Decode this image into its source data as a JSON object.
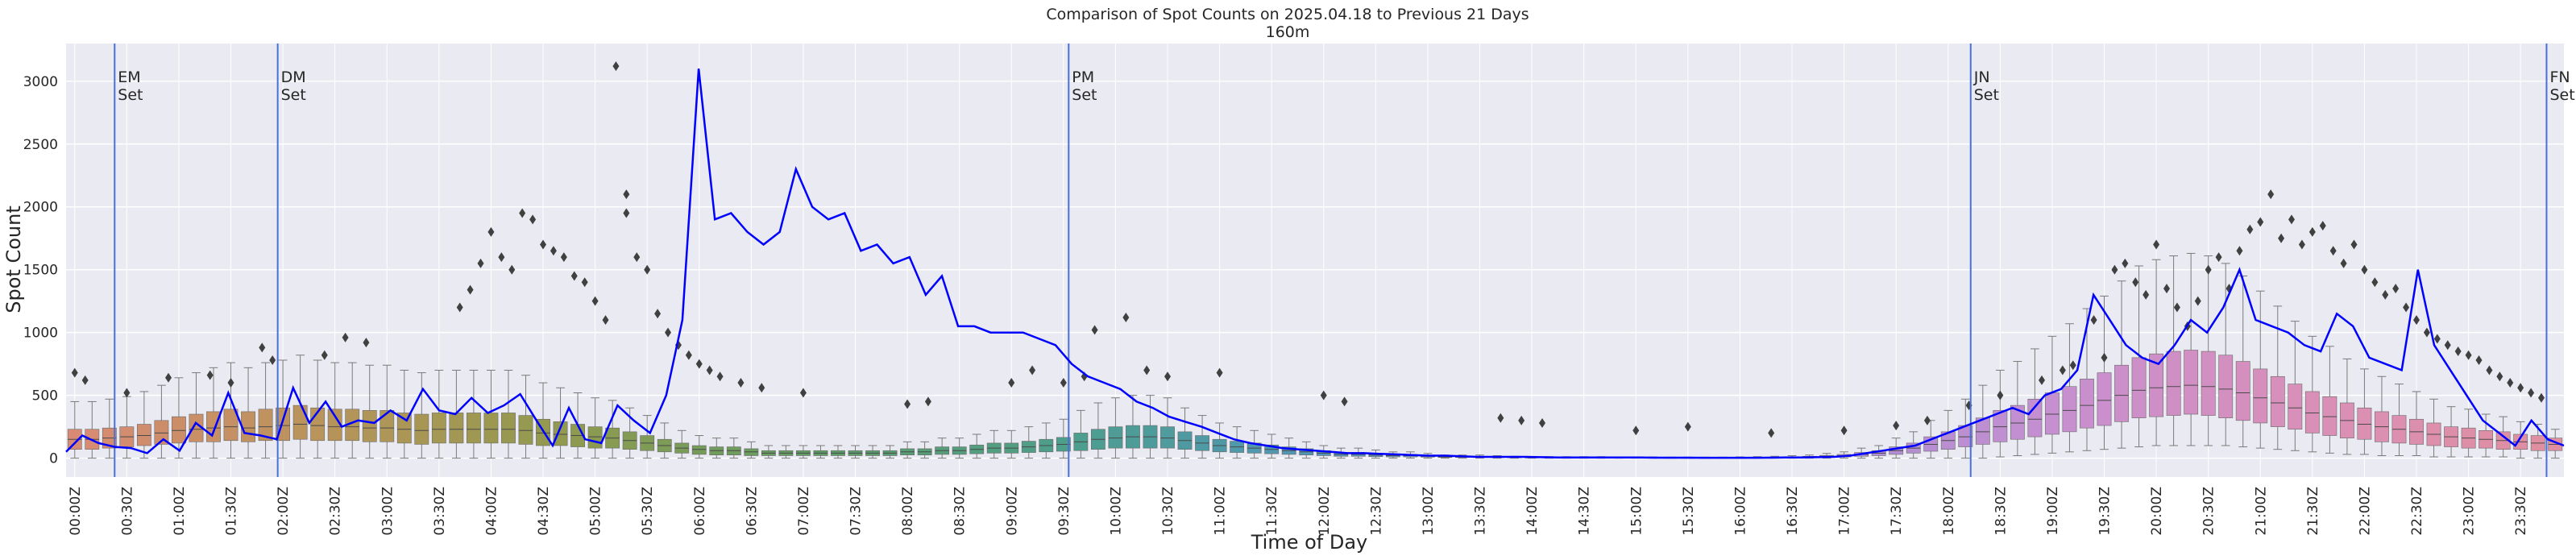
{
  "chart_data": {
    "type": "box+line",
    "title": "Comparison of Spot Counts on 2025.04.18 to Previous 21 Days",
    "subtitle": "160m",
    "xlabel": "Time of Day",
    "ylabel": "Spot Count",
    "ylim": [
      -150,
      3300
    ],
    "yticks": [
      0,
      500,
      1000,
      1500,
      2000,
      2500,
      3000
    ],
    "grid": true,
    "interval_minutes": 10,
    "n_bins": 144,
    "xtick_labels": [
      "00:00Z",
      "00:30Z",
      "01:00Z",
      "01:30Z",
      "02:00Z",
      "02:30Z",
      "03:00Z",
      "03:30Z",
      "04:00Z",
      "04:30Z",
      "05:00Z",
      "05:30Z",
      "06:00Z",
      "06:30Z",
      "07:00Z",
      "07:30Z",
      "08:00Z",
      "08:30Z",
      "09:00Z",
      "09:30Z",
      "10:00Z",
      "10:30Z",
      "11:00Z",
      "11:30Z",
      "12:00Z",
      "12:30Z",
      "13:00Z",
      "13:30Z",
      "14:00Z",
      "14:30Z",
      "15:00Z",
      "15:30Z",
      "16:00Z",
      "16:30Z",
      "17:00Z",
      "17:30Z",
      "18:00Z",
      "18:30Z",
      "19:00Z",
      "19:30Z",
      "20:00Z",
      "20:30Z",
      "21:00Z",
      "21:30Z",
      "22:00Z",
      "22:30Z",
      "23:00Z",
      "23:30Z"
    ],
    "events": [
      {
        "label_line1": "EM",
        "label_line2": "Set",
        "x_bin": 2.8
      },
      {
        "label_line1": "DM",
        "label_line2": "Set",
        "x_bin": 12.2
      },
      {
        "label_line1": "PM",
        "label_line2": "Set",
        "x_bin": 57.8
      },
      {
        "label_line1": "JN",
        "label_line2": "Set",
        "x_bin": 109.8
      },
      {
        "label_line1": "FN",
        "label_line2": "Set",
        "x_bin": 143.0
      }
    ],
    "box_medians": [
      150,
      150,
      160,
      170,
      180,
      200,
      220,
      230,
      240,
      250,
      240,
      250,
      260,
      270,
      260,
      250,
      250,
      240,
      240,
      230,
      220,
      230,
      230,
      230,
      230,
      230,
      220,
      200,
      190,
      180,
      170,
      160,
      140,
      120,
      100,
      80,
      70,
      60,
      60,
      50,
      40,
      40,
      40,
      40,
      40,
      40,
      40,
      40,
      50,
      50,
      60,
      60,
      70,
      80,
      80,
      90,
      100,
      110,
      130,
      150,
      160,
      170,
      170,
      160,
      140,
      120,
      100,
      90,
      80,
      70,
      60,
      50,
      40,
      30,
      30,
      25,
      20,
      20,
      15,
      10,
      10,
      10,
      8,
      6,
      5,
      5,
      5,
      5,
      5,
      4,
      4,
      4,
      3,
      3,
      3,
      3,
      4,
      5,
      6,
      8,
      10,
      15,
      20,
      30,
      40,
      60,
      80,
      110,
      140,
      170,
      210,
      250,
      280,
      310,
      350,
      380,
      420,
      460,
      500,
      540,
      560,
      570,
      580,
      570,
      550,
      520,
      480,
      440,
      400,
      360,
      330,
      300,
      270,
      250,
      230,
      210,
      190,
      170,
      160,
      150,
      140,
      130,
      120,
      110
    ],
    "box_q1": [
      70,
      70,
      80,
      90,
      100,
      110,
      120,
      130,
      130,
      140,
      130,
      140,
      140,
      150,
      140,
      140,
      140,
      130,
      130,
      120,
      110,
      120,
      120,
      120,
      120,
      120,
      110,
      100,
      100,
      90,
      80,
      80,
      70,
      60,
      50,
      40,
      30,
      25,
      25,
      20,
      20,
      20,
      20,
      20,
      20,
      20,
      20,
      20,
      25,
      25,
      30,
      30,
      35,
      40,
      40,
      45,
      50,
      55,
      60,
      70,
      80,
      80,
      80,
      80,
      70,
      60,
      50,
      45,
      40,
      35,
      30,
      25,
      20,
      15,
      15,
      12,
      10,
      10,
      8,
      5,
      5,
      5,
      4,
      3,
      2,
      2,
      2,
      2,
      2,
      2,
      2,
      2,
      1,
      1,
      1,
      1,
      2,
      2,
      3,
      4,
      5,
      8,
      10,
      15,
      20,
      30,
      40,
      55,
      70,
      90,
      110,
      130,
      150,
      170,
      190,
      210,
      240,
      260,
      290,
      320,
      330,
      340,
      350,
      340,
      320,
      300,
      280,
      250,
      230,
      200,
      180,
      160,
      150,
      130,
      120,
      110,
      100,
      90,
      80,
      80,
      70,
      70,
      60,
      60
    ],
    "box_q3": [
      230,
      230,
      240,
      250,
      270,
      300,
      330,
      350,
      370,
      390,
      370,
      390,
      400,
      420,
      400,
      390,
      390,
      380,
      380,
      360,
      350,
      360,
      360,
      360,
      360,
      360,
      340,
      310,
      290,
      270,
      250,
      240,
      210,
      180,
      150,
      120,
      100,
      90,
      90,
      75,
      60,
      60,
      60,
      60,
      60,
      60,
      60,
      60,
      75,
      75,
      90,
      90,
      105,
      120,
      120,
      135,
      150,
      165,
      200,
      230,
      250,
      260,
      260,
      250,
      210,
      180,
      150,
      135,
      120,
      105,
      90,
      75,
      60,
      45,
      45,
      38,
      30,
      30,
      22,
      15,
      15,
      15,
      12,
      9,
      8,
      8,
      8,
      8,
      8,
      6,
      6,
      6,
      5,
      5,
      5,
      5,
      6,
      8,
      9,
      12,
      15,
      22,
      30,
      45,
      60,
      90,
      120,
      170,
      210,
      260,
      320,
      380,
      420,
      470,
      520,
      570,
      630,
      680,
      740,
      800,
      830,
      850,
      860,
      850,
      820,
      770,
      710,
      650,
      590,
      530,
      490,
      440,
      400,
      370,
      340,
      310,
      280,
      250,
      240,
      220,
      210,
      190,
      180,
      160
    ],
    "box_whisker_low": [
      0,
      0,
      0,
      0,
      0,
      0,
      0,
      0,
      0,
      0,
      0,
      0,
      0,
      0,
      0,
      0,
      0,
      0,
      0,
      0,
      0,
      0,
      0,
      0,
      0,
      0,
      0,
      0,
      0,
      0,
      0,
      0,
      0,
      0,
      0,
      0,
      0,
      0,
      0,
      0,
      0,
      0,
      0,
      0,
      0,
      0,
      0,
      0,
      0,
      0,
      0,
      0,
      0,
      0,
      0,
      0,
      0,
      0,
      0,
      0,
      0,
      0,
      0,
      0,
      0,
      0,
      0,
      0,
      0,
      0,
      0,
      0,
      0,
      0,
      0,
      0,
      0,
      0,
      0,
      0,
      0,
      0,
      0,
      0,
      0,
      0,
      0,
      0,
      0,
      0,
      0,
      0,
      0,
      0,
      0,
      0,
      0,
      0,
      0,
      0,
      0,
      0,
      0,
      0,
      0,
      0,
      0,
      0,
      0,
      0,
      0,
      10,
      20,
      30,
      40,
      50,
      60,
      70,
      80,
      90,
      100,
      100,
      100,
      100,
      100,
      90,
      80,
      70,
      60,
      50,
      40,
      30,
      30,
      20,
      20,
      20,
      10,
      10,
      10,
      10,
      10,
      0,
      0,
      0
    ],
    "box_whisker_high": [
      450,
      450,
      470,
      490,
      530,
      580,
      640,
      680,
      720,
      760,
      720,
      760,
      780,
      820,
      780,
      760,
      760,
      740,
      740,
      700,
      680,
      700,
      700,
      700,
      700,
      700,
      660,
      600,
      560,
      520,
      480,
      460,
      400,
      340,
      280,
      220,
      180,
      160,
      160,
      130,
      100,
      100,
      100,
      100,
      100,
      100,
      100,
      100,
      130,
      130,
      160,
      160,
      190,
      220,
      220,
      250,
      280,
      310,
      380,
      440,
      480,
      500,
      500,
      480,
      400,
      340,
      280,
      250,
      220,
      190,
      160,
      130,
      100,
      80,
      80,
      65,
      50,
      50,
      38,
      25,
      25,
      25,
      20,
      15,
      12,
      12,
      12,
      12,
      12,
      10,
      10,
      10,
      8,
      8,
      8,
      8,
      10,
      12,
      15,
      20,
      25,
      38,
      50,
      80,
      100,
      160,
      210,
      300,
      380,
      470,
      580,
      700,
      770,
      870,
      970,
      1070,
      1190,
      1290,
      1410,
      1530,
      1580,
      1610,
      1630,
      1610,
      1550,
      1450,
      1330,
      1210,
      1090,
      970,
      890,
      790,
      710,
      650,
      590,
      530,
      470,
      410,
      390,
      350,
      330,
      290,
      270,
      230
    ],
    "outliers": [
      [
        0,
        680
      ],
      [
        1,
        620
      ],
      [
        5,
        520
      ],
      [
        9,
        640
      ],
      [
        13,
        660
      ],
      [
        15,
        600
      ],
      [
        18,
        880
      ],
      [
        19,
        780
      ],
      [
        24,
        820
      ],
      [
        26,
        960
      ],
      [
        28,
        920
      ],
      [
        37,
        1200
      ],
      [
        38,
        1340
      ],
      [
        39,
        1550
      ],
      [
        40,
        1800
      ],
      [
        41,
        1600
      ],
      [
        42,
        1500
      ],
      [
        43,
        1950
      ],
      [
        44,
        1900
      ],
      [
        45,
        1700
      ],
      [
        46,
        1650
      ],
      [
        47,
        1600
      ],
      [
        48,
        1450
      ],
      [
        49,
        1400
      ],
      [
        50,
        1250
      ],
      [
        51,
        1100
      ],
      [
        52,
        3120
      ],
      [
        53,
        1950
      ],
      [
        53,
        2100
      ],
      [
        54,
        1600
      ],
      [
        55,
        1500
      ],
      [
        56,
        1150
      ],
      [
        57,
        1000
      ],
      [
        58,
        900
      ],
      [
        59,
        820
      ],
      [
        60,
        750
      ],
      [
        61,
        700
      ],
      [
        62,
        650
      ],
      [
        64,
        600
      ],
      [
        66,
        560
      ],
      [
        70,
        520
      ],
      [
        80,
        430
      ],
      [
        82,
        450
      ],
      [
        90,
        600
      ],
      [
        92,
        700
      ],
      [
        95,
        600
      ],
      [
        97,
        650
      ],
      [
        98,
        1020
      ],
      [
        101,
        1120
      ],
      [
        103,
        700
      ],
      [
        105,
        650
      ],
      [
        110,
        680
      ],
      [
        120,
        500
      ],
      [
        122,
        450
      ],
      [
        137,
        320
      ],
      [
        139,
        300
      ],
      [
        141,
        280
      ],
      [
        150,
        220
      ],
      [
        155,
        250
      ],
      [
        163,
        200
      ],
      [
        170,
        220
      ],
      [
        175,
        260
      ],
      [
        178,
        300
      ],
      [
        182,
        420
      ],
      [
        185,
        500
      ],
      [
        189,
        620
      ],
      [
        191,
        700
      ],
      [
        192,
        740
      ],
      [
        194,
        1100
      ],
      [
        195,
        800
      ],
      [
        196,
        1500
      ],
      [
        197,
        1550
      ],
      [
        198,
        1400
      ],
      [
        199,
        1300
      ],
      [
        200,
        1700
      ],
      [
        201,
        1350
      ],
      [
        202,
        1200
      ],
      [
        203,
        1050
      ],
      [
        204,
        1250
      ],
      [
        205,
        1500
      ],
      [
        206,
        1600
      ],
      [
        207,
        1350
      ],
      [
        208,
        1650
      ],
      [
        209,
        1820
      ],
      [
        210,
        1880
      ],
      [
        211,
        2100
      ],
      [
        212,
        1750
      ],
      [
        213,
        1900
      ],
      [
        214,
        1700
      ],
      [
        215,
        1800
      ],
      [
        216,
        1850
      ],
      [
        217,
        1650
      ],
      [
        218,
        1550
      ],
      [
        219,
        1700
      ],
      [
        220,
        1500
      ],
      [
        221,
        1400
      ],
      [
        222,
        1300
      ],
      [
        223,
        1350
      ],
      [
        224,
        1200
      ],
      [
        225,
        1100
      ],
      [
        226,
        1000
      ],
      [
        227,
        950
      ],
      [
        228,
        900
      ],
      [
        229,
        850
      ],
      [
        230,
        820
      ],
      [
        231,
        780
      ],
      [
        232,
        700
      ],
      [
        233,
        650
      ],
      [
        234,
        600
      ],
      [
        235,
        560
      ],
      [
        236,
        520
      ],
      [
        237,
        480
      ]
    ],
    "today_series_name": "2025.04.18",
    "today_values": [
      50,
      180,
      120,
      90,
      80,
      40,
      150,
      60,
      280,
      180,
      520,
      200,
      180,
      150,
      560,
      280,
      450,
      250,
      300,
      280,
      380,
      300,
      550,
      380,
      350,
      480,
      360,
      420,
      510,
      300,
      100,
      400,
      150,
      120,
      420,
      300,
      200,
      500,
      1100,
      3100,
      1900,
      1950,
      1800,
      1700,
      1800,
      2300,
      2000,
      1900,
      1950,
      1650,
      1700,
      1550,
      1600,
      1300,
      1450,
      1050,
      1050,
      1000,
      1000,
      1000,
      950,
      900,
      750,
      650,
      600,
      550,
      450,
      400,
      330,
      290,
      250,
      200,
      150,
      120,
      100,
      80,
      70,
      60,
      50,
      40,
      40,
      35,
      30,
      25,
      20,
      20,
      15,
      10,
      10,
      10,
      10,
      8,
      6,
      5,
      5,
      5,
      5,
      5,
      4,
      4,
      4,
      3,
      3,
      3,
      3,
      4,
      5,
      6,
      8,
      10,
      20,
      40,
      60,
      80,
      100,
      150,
      200,
      250,
      300,
      350,
      400,
      350,
      500,
      550,
      700,
      1300,
      1100,
      900,
      800,
      750,
      900,
      1100,
      1000,
      1200,
      1500,
      1100,
      1050,
      1000,
      900,
      850,
      1150,
      1050,
      800,
      750,
      700,
      1500,
      900,
      700,
      500,
      300,
      200,
      100,
      300,
      150,
      100
    ]
  },
  "colors": {
    "plot_bg": "#eaeaf2",
    "grid": "#ffffff",
    "today_line": "#0000ff",
    "event_line": "#4a6fd8",
    "box_gradient": [
      "#d98a74",
      "#b8945a",
      "#8f9a4e",
      "#5e9e66",
      "#4d9e8c",
      "#5196b8",
      "#7d8fd0",
      "#a88ed4",
      "#c78fd0",
      "#d98fb8",
      "#e08fa0"
    ],
    "whisker": "#7a7a7a",
    "outlier": "#404040"
  }
}
